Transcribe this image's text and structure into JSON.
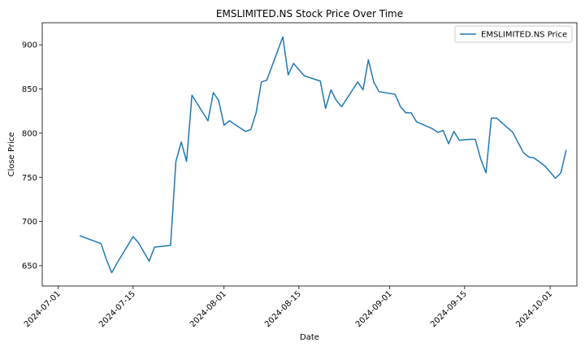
{
  "chart_data": {
    "type": "line",
    "title": "EMSLIMITED.NS Stock Price Over Time",
    "xlabel": "Date",
    "ylabel": "Close Price",
    "xlim": [
      "2024-06-28",
      "2024-10-06"
    ],
    "ylim": [
      627,
      925
    ],
    "x_ticks": [
      "2024-07-01",
      "2024-07-15",
      "2024-08-01",
      "2024-08-15",
      "2024-09-01",
      "2024-09-15",
      "2024-10-01"
    ],
    "y_ticks": [
      650,
      700,
      750,
      800,
      850,
      900
    ],
    "grid": false,
    "legend_position": "top-right",
    "series": [
      {
        "name": "EMSLIMITED.NS Price",
        "color": "#1f77b4",
        "points": [
          [
            "2024-07-05",
            684
          ],
          [
            "2024-07-09",
            675
          ],
          [
            "2024-07-10",
            657
          ],
          [
            "2024-07-11",
            642
          ],
          [
            "2024-07-12",
            653
          ],
          [
            "2024-07-15",
            683
          ],
          [
            "2024-07-16",
            676
          ],
          [
            "2024-07-18",
            655
          ],
          [
            "2024-07-19",
            671
          ],
          [
            "2024-07-22",
            673
          ],
          [
            "2024-07-23",
            768
          ],
          [
            "2024-07-24",
            790
          ],
          [
            "2024-07-25",
            768
          ],
          [
            "2024-07-26",
            843
          ],
          [
            "2024-07-29",
            814
          ],
          [
            "2024-07-30",
            846
          ],
          [
            "2024-07-31",
            837
          ],
          [
            "2024-08-01",
            809
          ],
          [
            "2024-08-02",
            814
          ],
          [
            "2024-08-05",
            802
          ],
          [
            "2024-08-06",
            804
          ],
          [
            "2024-08-07",
            823
          ],
          [
            "2024-08-08",
            858
          ],
          [
            "2024-08-09",
            860
          ],
          [
            "2024-08-12",
            909
          ],
          [
            "2024-08-13",
            866
          ],
          [
            "2024-08-14",
            879
          ],
          [
            "2024-08-16",
            865
          ],
          [
            "2024-08-19",
            859
          ],
          [
            "2024-08-20",
            828
          ],
          [
            "2024-08-21",
            849
          ],
          [
            "2024-08-22",
            837
          ],
          [
            "2024-08-23",
            830
          ],
          [
            "2024-08-26",
            858
          ],
          [
            "2024-08-27",
            849
          ],
          [
            "2024-08-28",
            883
          ],
          [
            "2024-08-29",
            858
          ],
          [
            "2024-08-30",
            847
          ],
          [
            "2024-09-02",
            844
          ],
          [
            "2024-09-03",
            830
          ],
          [
            "2024-09-04",
            823
          ],
          [
            "2024-09-05",
            823
          ],
          [
            "2024-09-06",
            813
          ],
          [
            "2024-09-09",
            805
          ],
          [
            "2024-09-10",
            801
          ],
          [
            "2024-09-11",
            803
          ],
          [
            "2024-09-12",
            788
          ],
          [
            "2024-09-13",
            802
          ],
          [
            "2024-09-14",
            792
          ],
          [
            "2024-09-16",
            793
          ],
          [
            "2024-09-17",
            793
          ],
          [
            "2024-09-18",
            771
          ],
          [
            "2024-09-19",
            755
          ],
          [
            "2024-09-20",
            817
          ],
          [
            "2024-09-21",
            817
          ],
          [
            "2024-09-24",
            801
          ],
          [
            "2024-09-26",
            778
          ],
          [
            "2024-09-27",
            773
          ],
          [
            "2024-09-28",
            772
          ],
          [
            "2024-09-30",
            763
          ],
          [
            "2024-10-01",
            756
          ],
          [
            "2024-10-02",
            749
          ],
          [
            "2024-10-03",
            755
          ],
          [
            "2024-10-04",
            781
          ]
        ]
      }
    ]
  }
}
